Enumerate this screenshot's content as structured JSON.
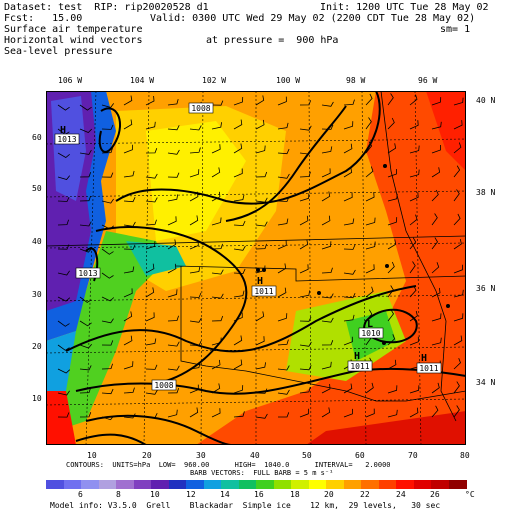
{
  "header": {
    "dataset_line": "Dataset: test  RIP: rip20020528 d1",
    "fcst_line": "Fcst:   15.00",
    "init": "Init: 1200 UTC Tue 28 May 02",
    "valid": "Valid: 0300 UTC Wed 29 May 02 (2200 CDT Tue 28 May 02)",
    "field1": "Surface air temperature",
    "sm": "sm= 1",
    "field2": "Horizontal wind vectors",
    "pressure": "at pressure =  900 hPa",
    "field3": "Sea-level pressure"
  },
  "axes": {
    "lon_labels": [
      "106 W",
      "104 W",
      "102 W",
      "100 W",
      "98 W",
      "96 W"
    ],
    "lat_labels": [
      "40 N",
      "38 N",
      "36 N",
      "34 N"
    ],
    "x_ticks": [
      "10",
      "20",
      "30",
      "40",
      "50",
      "60",
      "70",
      "80"
    ],
    "y_ticks": [
      "60",
      "50",
      "40",
      "30",
      "20",
      "10"
    ]
  },
  "pressure_labels": [
    {
      "text": "1008"
    },
    {
      "text": "1013"
    },
    {
      "text": "1013"
    },
    {
      "text": "1011"
    },
    {
      "text": "1010"
    },
    {
      "text": "1011"
    },
    {
      "text": "1011"
    },
    {
      "text": "1008"
    }
  ],
  "highs_lows": [
    {
      "letter": "H"
    },
    {
      "letter": "H"
    },
    {
      "letter": "L"
    },
    {
      "letter": "H"
    },
    {
      "letter": "H"
    }
  ],
  "contour_info": {
    "line1": "CONTOURS:  UNITS=hPa  LOW=  960.00      HIGH=  1040.0      INTERVAL=   2.0000",
    "line2": "BARB VECTORS:  FULL BARB = 5 m s⁻¹"
  },
  "colorbar": {
    "labels": [
      "6",
      "8",
      "10",
      "12",
      "14",
      "16",
      "18",
      "20",
      "22",
      "24",
      "26",
      "°C"
    ],
    "colors": [
      "#5050e0",
      "#7070f0",
      "#9090f0",
      "#b0a0e0",
      "#a070d0",
      "#8040c0",
      "#6020b0",
      "#2030c0",
      "#1060e0",
      "#10a0e0",
      "#10c0a0",
      "#10c060",
      "#40d020",
      "#90e000",
      "#d0f000",
      "#ffff00",
      "#ffd000",
      "#ffa000",
      "#ff7000",
      "#ff4000",
      "#ff1000",
      "#e00000",
      "#c00000",
      "#900000"
    ]
  },
  "model_info": "Model info: V3.5.0  Grell    Blackadar  Simple ice    12 km,  29 levels,   30 sec"
}
